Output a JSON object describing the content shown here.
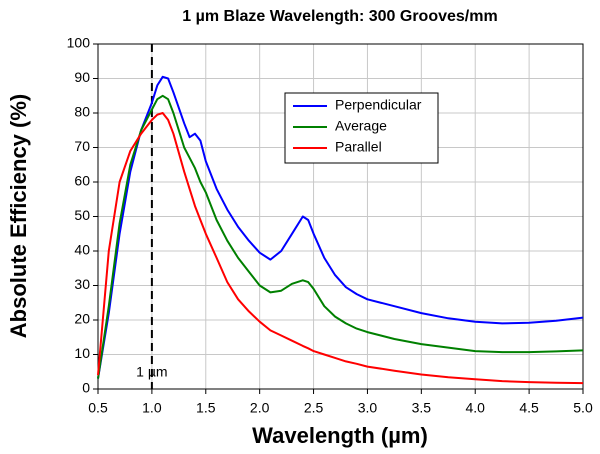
{
  "chart_data": {
    "type": "line",
    "title": "1 µm Blaze Wavelength: 300 Grooves/mm",
    "x_label": "Wavelength (µm)",
    "y_label": "Absolute Efficiency (%)",
    "x": [
      0.5,
      0.6,
      0.7,
      0.8,
      0.9,
      1.0,
      1.05,
      1.1,
      1.15,
      1.2,
      1.3,
      1.35,
      1.4,
      1.45,
      1.5,
      1.6,
      1.7,
      1.8,
      1.9,
      2.0,
      2.1,
      2.2,
      2.3,
      2.4,
      2.45,
      2.5,
      2.6,
      2.7,
      2.8,
      2.9,
      3.0,
      3.25,
      3.5,
      3.75,
      4.0,
      4.25,
      4.5,
      4.75,
      5.0
    ],
    "series": [
      {
        "name": "Perpendicular",
        "color": "#0000ff",
        "values": [
          3,
          22,
          45,
          63,
          75,
          83,
          88,
          90.5,
          90,
          86,
          77,
          73,
          74,
          72,
          66,
          58,
          52,
          47,
          43,
          39.5,
          37.5,
          40,
          45,
          50,
          49,
          45,
          38,
          33,
          29.5,
          27.5,
          26,
          24,
          22,
          20.5,
          19.5,
          19,
          19.2,
          19.8,
          20.7
        ]
      },
      {
        "name": "Average",
        "color": "#008000",
        "values": [
          3,
          24,
          48,
          65,
          75,
          81,
          84,
          85,
          84,
          80,
          70,
          67,
          64,
          60,
          57,
          49,
          43,
          38,
          34,
          30,
          28,
          28.5,
          30.5,
          31.5,
          31,
          29,
          24,
          21,
          19,
          17.5,
          16.5,
          14.5,
          13,
          12,
          11,
          10.7,
          10.7,
          10.9,
          11.2
        ]
      },
      {
        "name": "Parallel",
        "color": "#ff0000",
        "values": [
          4,
          40,
          60,
          69,
          74,
          78,
          79.5,
          80,
          78,
          74,
          63,
          58,
          53,
          49,
          45,
          38,
          31,
          26,
          22.5,
          19.5,
          17,
          15.5,
          14,
          12.5,
          11.8,
          11,
          10,
          9,
          8,
          7.3,
          6.5,
          5.3,
          4.2,
          3.4,
          2.8,
          2.3,
          2,
          1.8,
          1.7
        ]
      }
    ],
    "xlim": [
      0.5,
      5.0
    ],
    "ylim": [
      0,
      100
    ],
    "xticks": [
      0.5,
      {
        "value": 1,
        "label": "1.0"
      },
      1.5,
      {
        "value": 2,
        "label": "2.0"
      },
      2.5,
      {
        "value": 3,
        "label": "3.0"
      },
      3.5,
      {
        "value": 4,
        "label": "4.0"
      },
      4.5,
      {
        "value": 5,
        "label": "5.0"
      }
    ],
    "yticks": [
      0,
      10,
      20,
      30,
      40,
      50,
      60,
      70,
      80,
      90,
      100
    ],
    "grid": true,
    "vline": {
      "x": 1,
      "label": "1 µm"
    }
  }
}
